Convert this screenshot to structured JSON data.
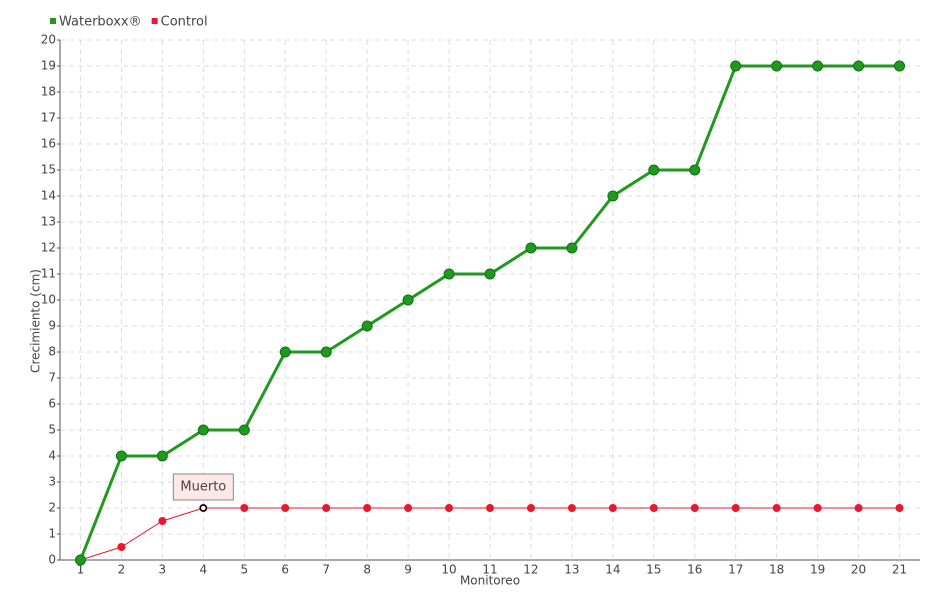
{
  "chart_data": {
    "type": "line",
    "x_label": "Monitoreo",
    "y_label": "Crecimiento (cm)",
    "categories": [
      "1",
      "2",
      "3",
      "4",
      "5",
      "6",
      "7",
      "8",
      "9",
      "10",
      "11",
      "12",
      "13",
      "14",
      "15",
      "16",
      "17",
      "18",
      "19",
      "20",
      "21"
    ],
    "series": [
      {
        "name": "Waterboxx®",
        "color": "#1f9a1f",
        "values": [
          0,
          4,
          4,
          5,
          5,
          8,
          8,
          9,
          10,
          11,
          11,
          12,
          12,
          14,
          15,
          15,
          19,
          19,
          19,
          19,
          19
        ]
      },
      {
        "name": "Control",
        "color": "#e8192c",
        "values": [
          0,
          0.5,
          1.5,
          2,
          2,
          2,
          2,
          2,
          2,
          2,
          2,
          2,
          2,
          2,
          2,
          2,
          2,
          2,
          2,
          2,
          2
        ]
      }
    ],
    "annotation": "Muerto",
    "ylim": [
      0,
      20
    ],
    "yticks": [
      0,
      1,
      2,
      3,
      4,
      5,
      6,
      7,
      8,
      9,
      10,
      11,
      12,
      13,
      14,
      15,
      16,
      17,
      18,
      19,
      20
    ],
    "grid": true,
    "legend": "top-left"
  }
}
